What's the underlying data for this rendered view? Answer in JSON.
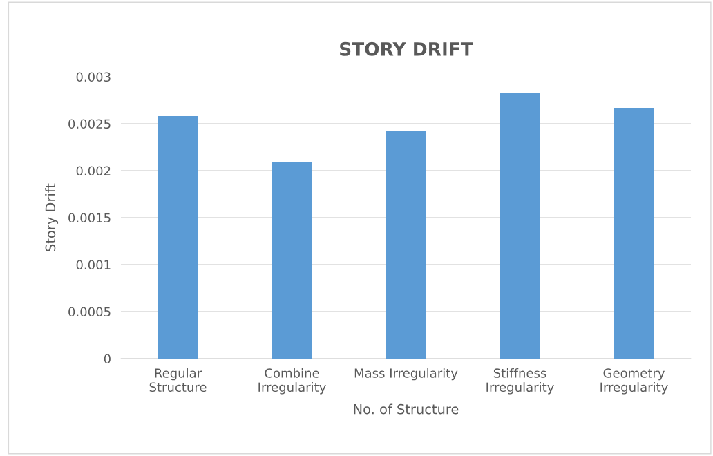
{
  "chart_data": {
    "type": "bar",
    "title": "STORY DRIFT",
    "xlabel": "No. of Structure",
    "ylabel": "Story Drift",
    "categories": [
      "Regular\nStructure",
      "Combine\nIrregularity",
      "Mass Irregularity",
      "Stiffness\nIrregularity",
      "Geometry\nIrregularity"
    ],
    "values": [
      0.00258,
      0.00209,
      0.00242,
      0.00283,
      0.00267
    ],
    "color": "#5b9bd5",
    "ylim": [
      0,
      0.003
    ],
    "yticks": [
      0,
      0.0005,
      0.001,
      0.0015,
      0.002,
      0.0025,
      0.003
    ],
    "grid": "y"
  }
}
